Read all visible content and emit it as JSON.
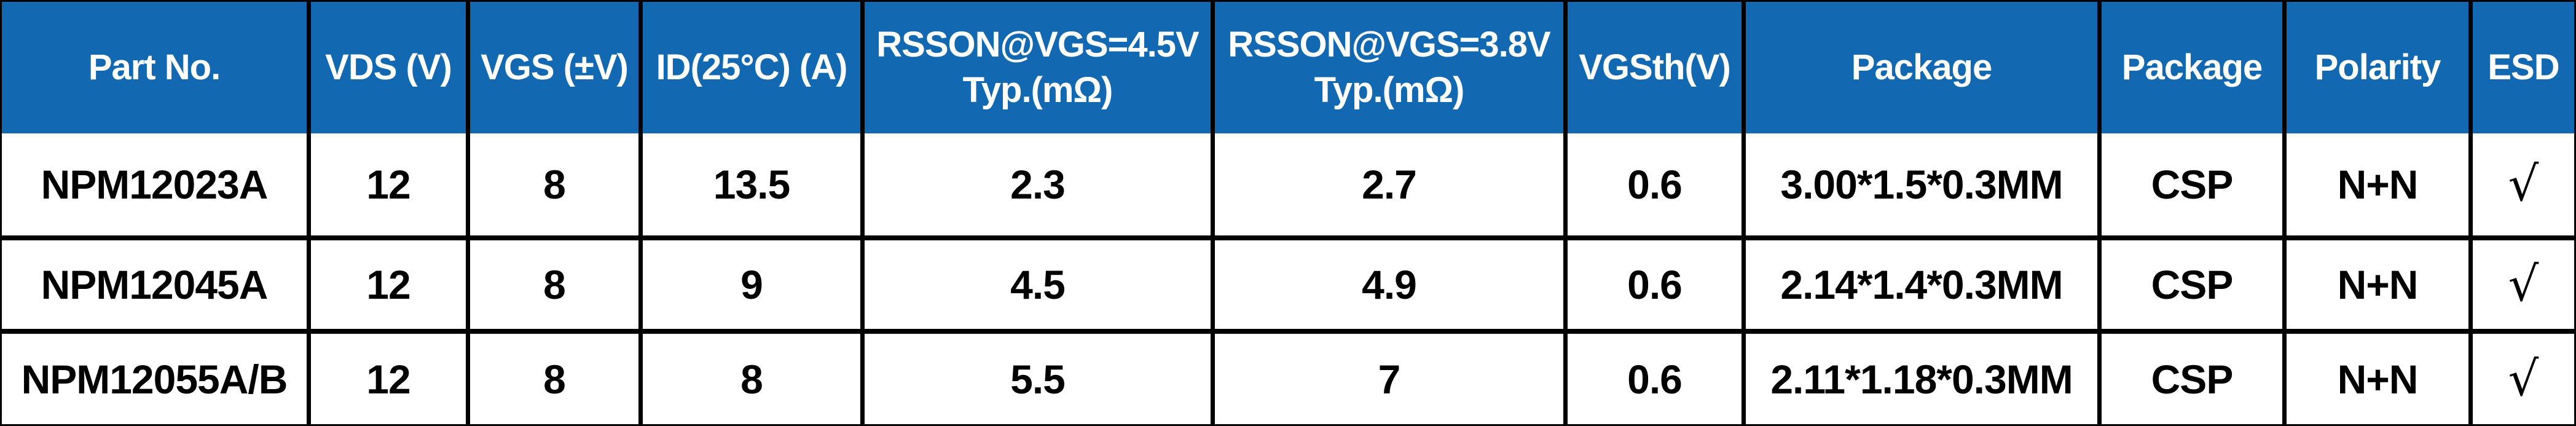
{
  "colors": {
    "header_bg": "#1268B1",
    "header_text": "#FFFFFF",
    "border": "#000000",
    "row_bg": "#FFFFFF",
    "cell_text": "#000000"
  },
  "table": {
    "columns": [
      {
        "label": "Part No.",
        "slug": "part-no"
      },
      {
        "label": "VDS (V)",
        "slug": "vds-v"
      },
      {
        "label": "VGS (±V)",
        "slug": "vgs-pm-v"
      },
      {
        "label": "ID(25°C) (A)",
        "slug": "id-25c-a"
      },
      {
        "label": "RSSON@VGS=4.5V\nTyp.(mΩ)",
        "slug": "rsson-vgs-4v5-typ-mohm"
      },
      {
        "label": "RSSON@VGS=3.8V\nTyp.(mΩ)",
        "slug": "rsson-vgs-3v8-typ-mohm"
      },
      {
        "label": "VGSth(V)",
        "slug": "vgsth-v"
      },
      {
        "label": "Package",
        "slug": "package-size"
      },
      {
        "label": "Package",
        "slug": "package-type"
      },
      {
        "label": "Polarity",
        "slug": "polarity"
      },
      {
        "label": "ESD",
        "slug": "esd"
      }
    ],
    "rows": [
      [
        "NPM12023A",
        "12",
        "8",
        "13.5",
        "2.3",
        "2.7",
        "0.6",
        "3.00*1.5*0.3MM",
        "CSP",
        "N+N",
        "√"
      ],
      [
        "NPM12045A",
        "12",
        "8",
        "9",
        "4.5",
        "4.9",
        "0.6",
        "2.14*1.4*0.3MM",
        "CSP",
        "N+N",
        "√"
      ],
      [
        "NPM12055A/B",
        "12",
        "8",
        "8",
        "5.5",
        "7",
        "0.6",
        "2.11*1.18*0.3MM",
        "CSP",
        "N+N",
        "√"
      ]
    ]
  }
}
